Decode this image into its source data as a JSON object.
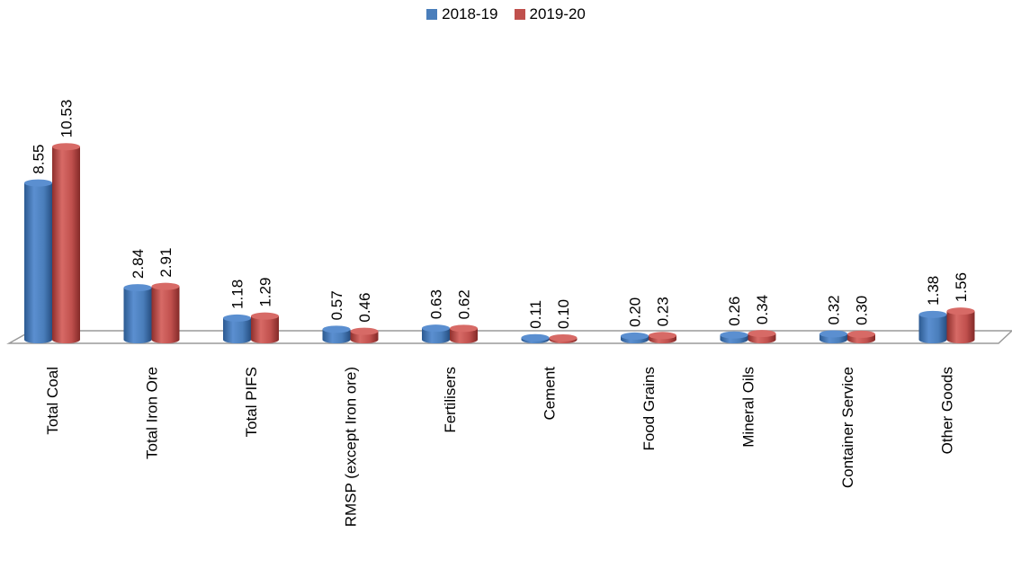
{
  "chart_data": {
    "type": "bar",
    "title": "",
    "xlabel": "",
    "ylabel": "",
    "ylim": [
      0,
      12
    ],
    "grid": false,
    "legend_position": "top",
    "categories": [
      "Total Coal",
      "Total Iron Ore",
      "Total PIFS",
      "RMSP (except Iron ore)",
      "Fertilisers",
      "Cement",
      "Food Grains",
      "Mineral Oils",
      "Container Service",
      "Other Goods"
    ],
    "series": [
      {
        "name": "2018-19",
        "color": "#4A7EBB",
        "values": [
          8.55,
          2.84,
          1.18,
          0.57,
          0.63,
          0.11,
          0.2,
          0.26,
          0.32,
          1.38
        ],
        "labels": [
          "8.55",
          "2.84",
          "1.18",
          "0.57",
          "0.63",
          "0.11",
          "0.20",
          "0.26",
          "0.32",
          "1.38"
        ]
      },
      {
        "name": "2019-20",
        "color": "#C0504D",
        "values": [
          10.53,
          2.91,
          1.29,
          0.46,
          0.62,
          0.1,
          0.23,
          0.34,
          0.3,
          1.56
        ],
        "labels": [
          "10.53",
          "2.91",
          "1.29",
          "0.46",
          "0.62",
          "0.10",
          "0.23",
          "0.34",
          "0.30",
          "1.56"
        ]
      }
    ]
  }
}
